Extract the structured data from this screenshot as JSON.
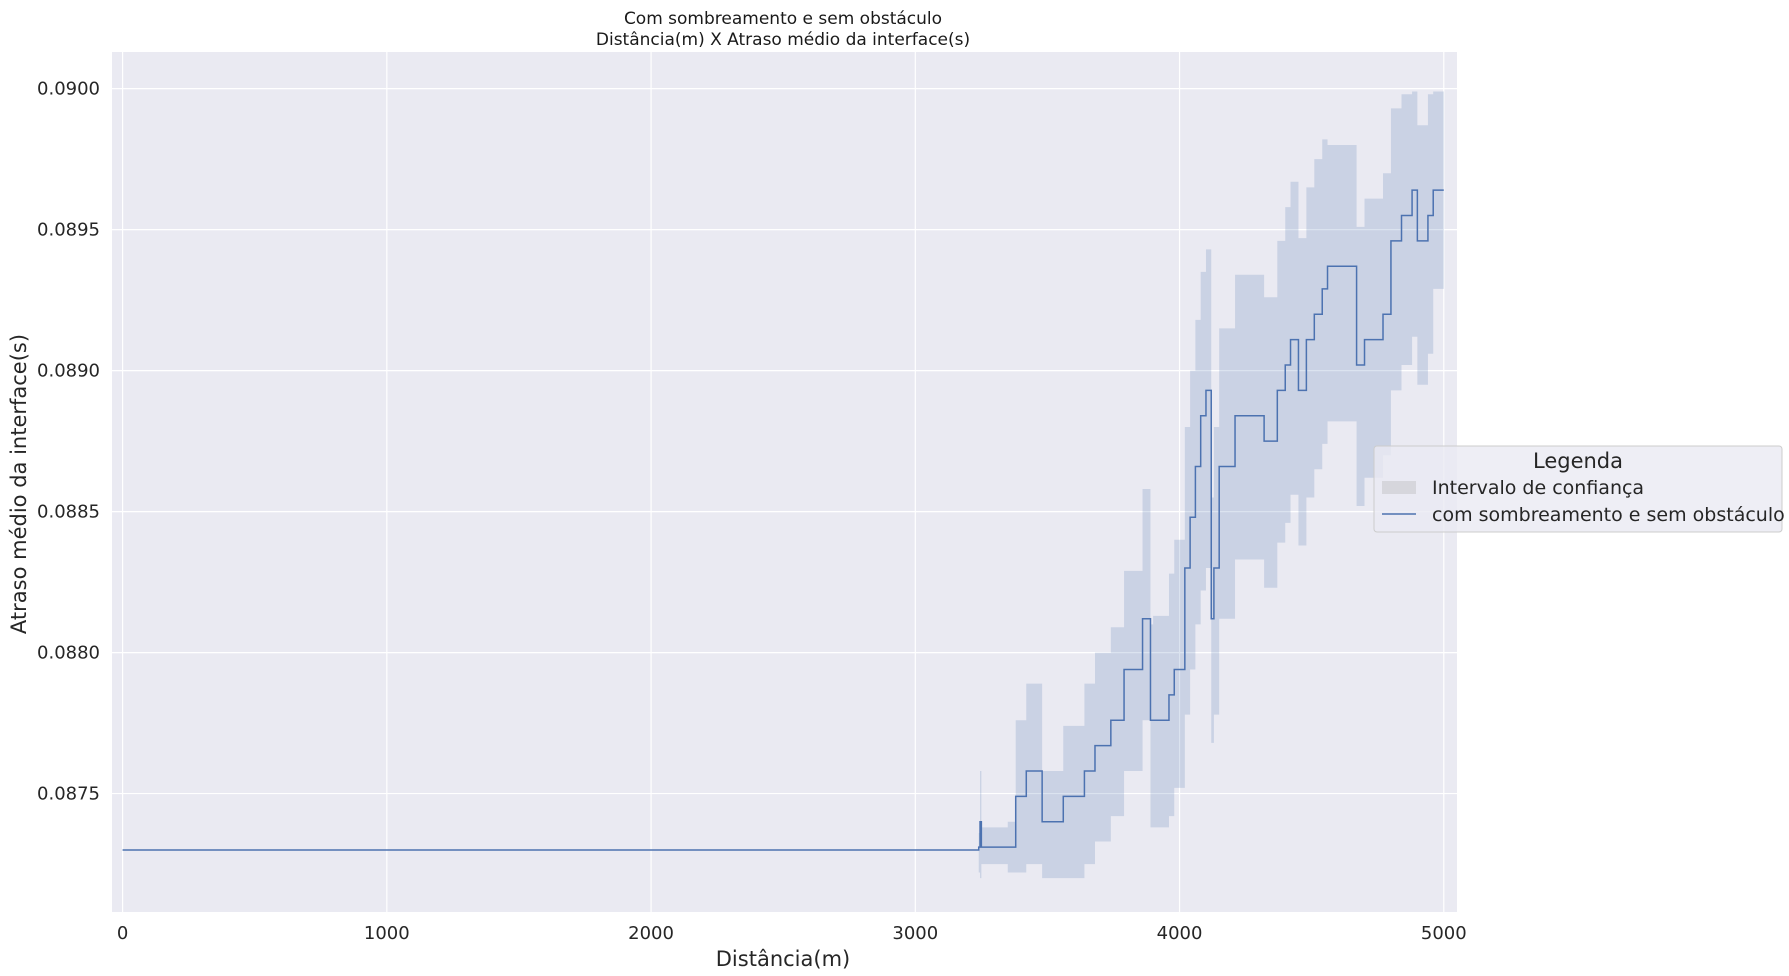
{
  "chart_data": {
    "type": "line",
    "title": "Com sombreamento e sem obstáculo",
    "subtitle": "Distância(m) X Atraso médio da interface(s)",
    "xlabel": "Distância(m)",
    "ylabel": "Atraso médio da interface(s)",
    "xlim": [
      -40,
      5050
    ],
    "ylim": [
      0.08708,
      0.09013
    ],
    "xticks": [
      0,
      1000,
      2000,
      3000,
      4000,
      5000
    ],
    "xtick_labels": [
      "0",
      "1000",
      "2000",
      "3000",
      "4000",
      "5000"
    ],
    "yticks": [
      0.0875,
      0.088,
      0.0885,
      0.089,
      0.0895,
      0.09
    ],
    "ytick_labels": [
      "0.0875",
      "0.0880",
      "0.0885",
      "0.0890",
      "0.0895",
      "0.0900"
    ],
    "grid": true,
    "legend": {
      "title": "Legenda",
      "placement": "outside-right",
      "entries": [
        "Intervalo de confiança",
        "com sombreamento e sem obstáculo"
      ]
    },
    "colors": {
      "line": "#4c72b0",
      "band": "#4c72b0",
      "plot_background": "#eaeaf2",
      "grid": "#ffffff"
    },
    "series": [
      {
        "name": "com sombreamento e sem obstáculo",
        "x": [
          0,
          3240,
          3245,
          3250,
          3350,
          3380,
          3420,
          3480,
          3560,
          3640,
          3680,
          3740,
          3790,
          3860,
          3890,
          3900,
          3960,
          3980,
          4020,
          4040,
          4060,
          4080,
          4100,
          4120,
          4130,
          4150,
          4210,
          4230,
          4320,
          4370,
          4400,
          4420,
          4450,
          4480,
          4510,
          4540,
          4560,
          4600,
          4670,
          4700,
          4770,
          4800,
          4840,
          4880,
          4900,
          4940,
          4960,
          5000
        ],
        "y": [
          0.0873,
          0.08731,
          0.0874,
          0.08731,
          0.08731,
          0.08749,
          0.08758,
          0.0874,
          0.08749,
          0.08758,
          0.08767,
          0.08776,
          0.08794,
          0.08812,
          0.08776,
          0.08776,
          0.08785,
          0.08794,
          0.0883,
          0.08848,
          0.08866,
          0.08884,
          0.08893,
          0.08812,
          0.0883,
          0.08866,
          0.08884,
          0.08884,
          0.08875,
          0.08893,
          0.08902,
          0.08911,
          0.08893,
          0.08911,
          0.0892,
          0.08929,
          0.08937,
          0.08937,
          0.08902,
          0.08911,
          0.0892,
          0.08946,
          0.08955,
          0.08964,
          0.08946,
          0.08955,
          0.08964,
          0.08964
        ],
        "ci_low": [
          0.0873,
          0.08722,
          0.0872,
          0.08725,
          0.08722,
          0.08722,
          0.08725,
          0.0872,
          0.0872,
          0.08725,
          0.08733,
          0.08742,
          0.08758,
          0.08776,
          0.08738,
          0.08738,
          0.08742,
          0.08752,
          0.08778,
          0.08794,
          0.0881,
          0.08822,
          0.0883,
          0.08768,
          0.08778,
          0.08812,
          0.08833,
          0.08833,
          0.08823,
          0.08839,
          0.08846,
          0.08856,
          0.08838,
          0.08855,
          0.08865,
          0.08874,
          0.08882,
          0.08882,
          0.08852,
          0.08862,
          0.0887,
          0.08893,
          0.08902,
          0.08912,
          0.08895,
          0.08906,
          0.08929,
          0.08929
        ],
        "ci_high": [
          0.0873,
          0.08736,
          0.08758,
          0.08738,
          0.0874,
          0.08776,
          0.08789,
          0.08758,
          0.08774,
          0.08789,
          0.088,
          0.08809,
          0.08829,
          0.08858,
          0.0881,
          0.08813,
          0.08828,
          0.0884,
          0.0888,
          0.089,
          0.08918,
          0.08935,
          0.08943,
          0.08855,
          0.0888,
          0.08915,
          0.08934,
          0.08934,
          0.08926,
          0.08946,
          0.08958,
          0.08967,
          0.08947,
          0.08965,
          0.08975,
          0.08982,
          0.0898,
          0.0898,
          0.08951,
          0.08961,
          0.0897,
          0.08993,
          0.08998,
          0.08999,
          0.08987,
          0.08998,
          0.08999,
          0.08999
        ]
      }
    ]
  }
}
